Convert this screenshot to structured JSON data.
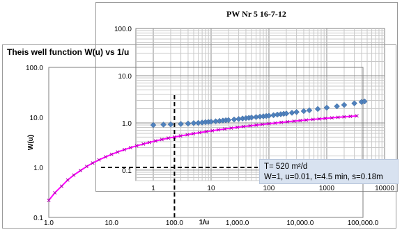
{
  "chart_data": [
    {
      "type": "scatter",
      "title": "PW Nr 5 16-7-12",
      "xlabel": "",
      "ylabel": "",
      "x_scale": "log",
      "y_scale": "log",
      "xlim": [
        0.5,
        10000
      ],
      "ylim": [
        0.06,
        100
      ],
      "x_ticks": [
        "1",
        "10",
        "100",
        "1000",
        "10000"
      ],
      "y_ticks": [
        "100.0",
        "10.0",
        "1.0",
        "0.1"
      ],
      "grid": true,
      "series": [
        {
          "color": "#4f81bd",
          "marker": "diamond",
          "x": [
            1,
            1.5,
            2,
            3,
            4,
            5,
            6,
            7,
            8,
            9,
            10,
            12,
            14,
            16,
            18,
            20,
            25,
            30,
            35,
            40,
            45,
            50,
            60,
            70,
            80,
            90,
            100,
            120,
            140,
            160,
            180,
            200,
            250,
            300,
            400,
            500,
            700,
            1000,
            1500,
            2000,
            3000,
            4000,
            4500
          ],
          "y": [
            0.9,
            0.92,
            0.93,
            0.95,
            0.97,
            0.99,
            1.0,
            1.02,
            1.04,
            1.05,
            1.06,
            1.08,
            1.1,
            1.12,
            1.14,
            1.15,
            1.18,
            1.21,
            1.24,
            1.26,
            1.28,
            1.3,
            1.33,
            1.36,
            1.38,
            1.4,
            1.42,
            1.46,
            1.5,
            1.53,
            1.56,
            1.58,
            1.64,
            1.7,
            1.78,
            1.85,
            1.97,
            2.1,
            2.25,
            2.4,
            2.6,
            2.78,
            2.85
          ]
        }
      ],
      "annotation": {
        "lines": [
          "T= 520 m²/d",
          "W=1, u=0.01, t=4.5 min, s=0.18m"
        ],
        "background": "#d8e2f0"
      }
    },
    {
      "type": "line",
      "title": "Theis well function W(u) vs 1/u",
      "xlabel": "1/u",
      "ylabel": "W(u)",
      "x_scale": "log",
      "y_scale": "log",
      "xlim": [
        1,
        100000
      ],
      "ylim": [
        0.1,
        100
      ],
      "x_ticks": [
        "1.0",
        "10.0",
        "100.0",
        "1,000.0",
        "10,000.0",
        "100,000.0"
      ],
      "y_ticks": [
        "100.0",
        "10.0",
        "1.0",
        "0.1"
      ],
      "grid": false,
      "series": [
        {
          "color": "#ff00ff",
          "marker": "x",
          "x": [
            1,
            1.25,
            1.6,
            2,
            2.5,
            3.2,
            4,
            5,
            6.3,
            8,
            10,
            12.5,
            16,
            20,
            25,
            32,
            40,
            50,
            63,
            80,
            100,
            125,
            160,
            200,
            250,
            320,
            400,
            500,
            630,
            800,
            1000,
            1250,
            1600,
            2000,
            2500,
            3200,
            4000,
            5000,
            6300,
            8000,
            10000,
            12500,
            16000,
            20000,
            25000,
            32000,
            40000,
            50000,
            63000,
            80000
          ],
          "y": [
            0.219,
            0.311,
            0.421,
            0.56,
            0.702,
            0.867,
            1.044,
            1.223,
            1.416,
            1.623,
            1.823,
            2.031,
            2.266,
            2.48,
            2.7,
            2.94,
            3.16,
            3.38,
            3.61,
            3.85,
            4.04,
            4.26,
            4.5,
            4.73,
            4.95,
            5.2,
            5.42,
            5.64,
            5.87,
            6.11,
            6.33,
            6.55,
            6.8,
            7.02,
            7.24,
            7.49,
            7.71,
            7.94,
            8.17,
            8.41,
            8.63,
            8.86,
            9.11,
            9.33,
            9.55,
            9.8,
            10.02,
            10.25,
            10.48,
            10.71
          ]
        }
      ],
      "guides": {
        "color": "#000000",
        "style": "dashed",
        "vertical_x": 100,
        "horizontal_y": 1
      }
    }
  ]
}
